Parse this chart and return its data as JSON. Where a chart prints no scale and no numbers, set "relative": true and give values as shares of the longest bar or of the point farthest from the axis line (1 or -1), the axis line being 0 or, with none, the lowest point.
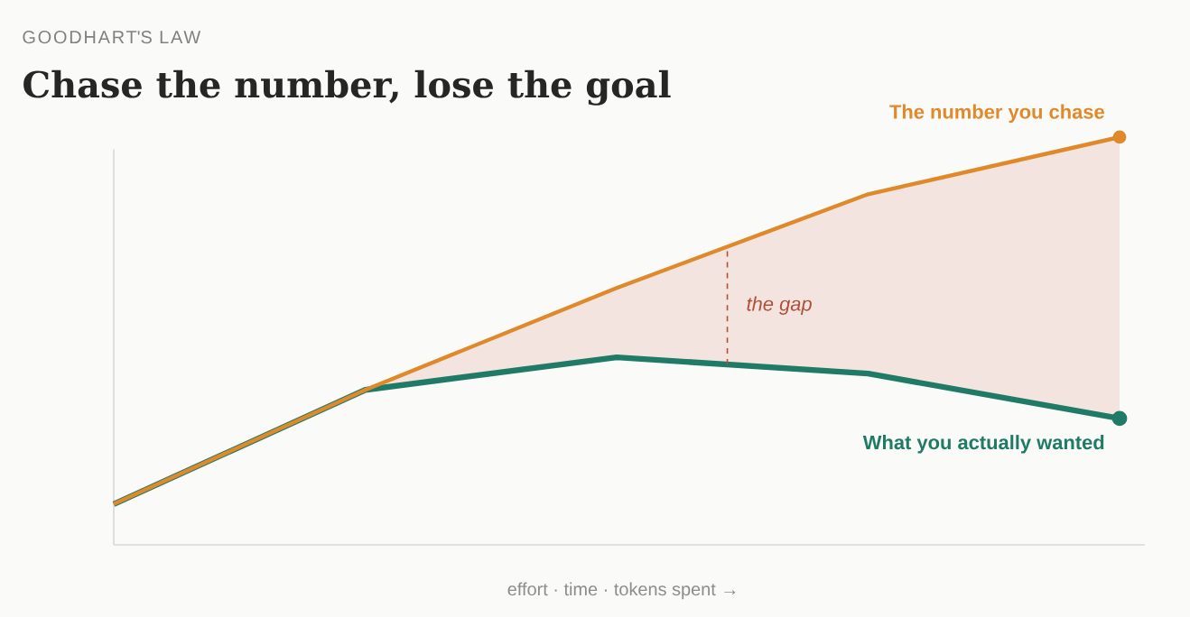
{
  "chart_data": {
    "type": "line",
    "subtitle": "GOODHART'S LAW",
    "title": "Chase the number, lose the goal",
    "xlabel": "effort · time · tokens spent →",
    "relative": true,
    "line_style": "solid",
    "categories": [
      null,
      null,
      null,
      null,
      null
    ],
    "series": [
      {
        "name": "The number you chase",
        "color": "#e0892a",
        "values": [
          0.1,
          0.38,
          0.63,
          0.86,
          1
        ],
        "lower": [
          0.1,
          0.38,
          0.46,
          0.42,
          0.31
        ],
        "upper": [
          0.1,
          0.38,
          0.63,
          0.86,
          1
        ]
      },
      {
        "name": "What you actually wanted",
        "color": "#1f7a66",
        "values": [
          0.1,
          0.38,
          0.46,
          0.42,
          0.31
        ]
      }
    ],
    "annotations": [
      "the gap"
    ]
  }
}
